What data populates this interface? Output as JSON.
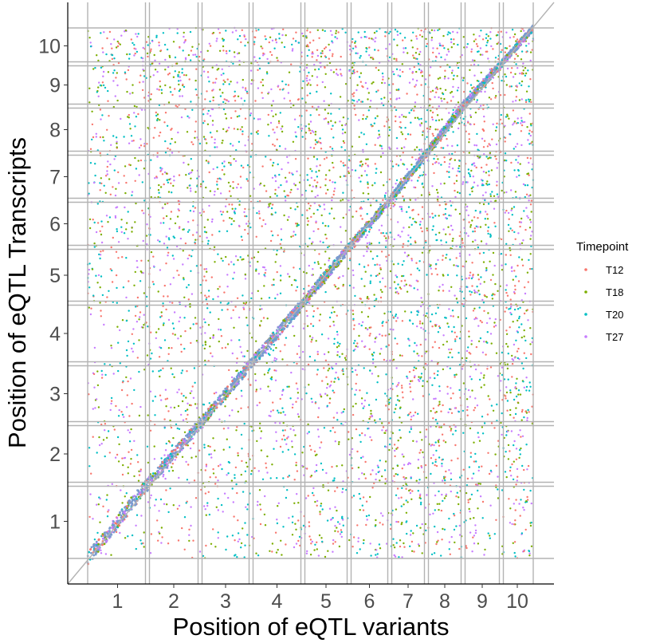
{
  "chart_data": {
    "type": "scatter",
    "xlabel": "Position of eQTL variants",
    "ylabel": "Position of eQTL Transcripts",
    "x_ticks": [
      "1",
      "2",
      "3",
      "4",
      "5",
      "6",
      "7",
      "8",
      "9",
      "10"
    ],
    "y_ticks": [
      "1",
      "2",
      "3",
      "4",
      "5",
      "6",
      "7",
      "8",
      "9",
      "10"
    ],
    "chromosome_boundaries": [
      0.5,
      1.5,
      2.5,
      3.5,
      4.5,
      5.5,
      6.5,
      7.5,
      8.5,
      9.5,
      10.5
    ],
    "diagonal_line": true,
    "grid": false,
    "legend": {
      "title": "Timepoint",
      "placement": "right",
      "entries": [
        {
          "name": "T12",
          "color": "#F8766D"
        },
        {
          "name": "T18",
          "color": "#7CAE00"
        },
        {
          "name": "T20",
          "color": "#00BFC4"
        },
        {
          "name": "T27",
          "color": "#C77CFF"
        }
      ]
    },
    "series": [
      {
        "name": "T12",
        "color": "#F8766D"
      },
      {
        "name": "T18",
        "color": "#7CAE00"
      },
      {
        "name": "T20",
        "color": "#00BFC4"
      },
      {
        "name": "T27",
        "color": "#C77CFF"
      }
    ],
    "cis_color": "#7B9BCF",
    "boundary_color": "#b3b3b3"
  }
}
